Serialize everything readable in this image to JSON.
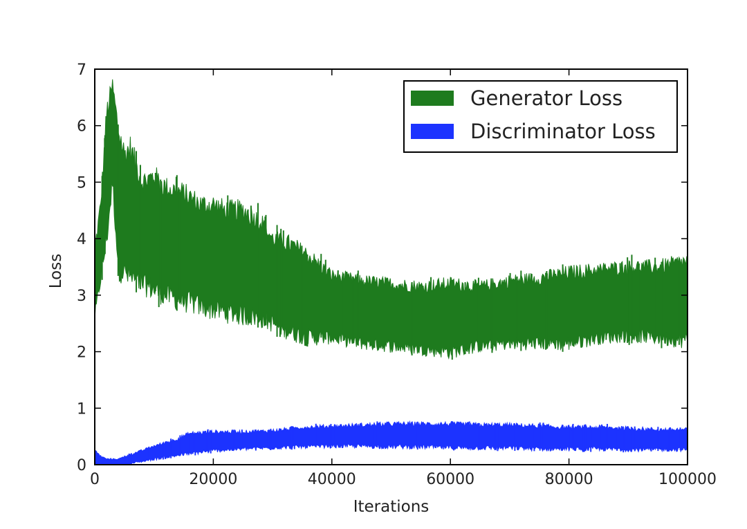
{
  "chart_data": {
    "type": "area",
    "xlabel": "Iterations",
    "ylabel": "Loss",
    "xlim": [
      0,
      100000
    ],
    "ylim": [
      0,
      7
    ],
    "xticks": [
      0,
      20000,
      40000,
      60000,
      80000,
      100000
    ],
    "yticks": [
      0,
      1,
      2,
      3,
      4,
      5,
      6,
      7
    ],
    "grid": false,
    "legend_position": "top-right",
    "series": [
      {
        "name": "Generator Loss",
        "color": "#1e7b1e",
        "x": [
          0,
          1000,
          2000,
          3000,
          4000,
          5000,
          6000,
          8000,
          10000,
          12000,
          15000,
          18000,
          20000,
          22000,
          25000,
          28000,
          30000,
          33000,
          36000,
          40000,
          45000,
          50000,
          55000,
          60000,
          65000,
          70000,
          75000,
          80000,
          85000,
          90000,
          95000,
          100000
        ],
        "upper": [
          3.8,
          4.6,
          6.2,
          6.7,
          5.9,
          5.5,
          5.6,
          5.0,
          5.1,
          4.9,
          4.8,
          4.6,
          4.6,
          4.5,
          4.5,
          4.3,
          4.0,
          3.9,
          3.7,
          3.35,
          3.25,
          3.2,
          3.15,
          3.2,
          3.15,
          3.25,
          3.3,
          3.4,
          3.45,
          3.5,
          3.5,
          3.6
        ],
        "lower": [
          2.6,
          3.3,
          4.0,
          5.0,
          3.5,
          3.4,
          3.3,
          3.2,
          3.1,
          3.0,
          2.9,
          2.8,
          2.75,
          2.7,
          2.65,
          2.6,
          2.5,
          2.35,
          2.25,
          2.25,
          2.15,
          2.1,
          2.05,
          2.0,
          2.1,
          2.15,
          2.15,
          2.15,
          2.25,
          2.3,
          2.25,
          2.2
        ]
      },
      {
        "name": "Discriminator Loss",
        "color": "#1c33ff",
        "x": [
          0,
          1000,
          2000,
          4000,
          6000,
          8000,
          10000,
          13000,
          16000,
          20000,
          25000,
          30000,
          35000,
          40000,
          45000,
          50000,
          55000,
          60000,
          65000,
          70000,
          75000,
          80000,
          85000,
          90000,
          95000,
          100000
        ],
        "upper": [
          0.25,
          0.15,
          0.1,
          0.1,
          0.18,
          0.25,
          0.33,
          0.42,
          0.55,
          0.58,
          0.58,
          0.6,
          0.66,
          0.68,
          0.7,
          0.72,
          0.72,
          0.72,
          0.7,
          0.7,
          0.68,
          0.66,
          0.66,
          0.64,
          0.62,
          0.62
        ],
        "lower": [
          0.0,
          0.0,
          0.0,
          0.0,
          0.02,
          0.06,
          0.1,
          0.15,
          0.2,
          0.25,
          0.28,
          0.3,
          0.32,
          0.33,
          0.33,
          0.32,
          0.32,
          0.3,
          0.3,
          0.3,
          0.28,
          0.28,
          0.28,
          0.27,
          0.27,
          0.27
        ]
      }
    ]
  }
}
